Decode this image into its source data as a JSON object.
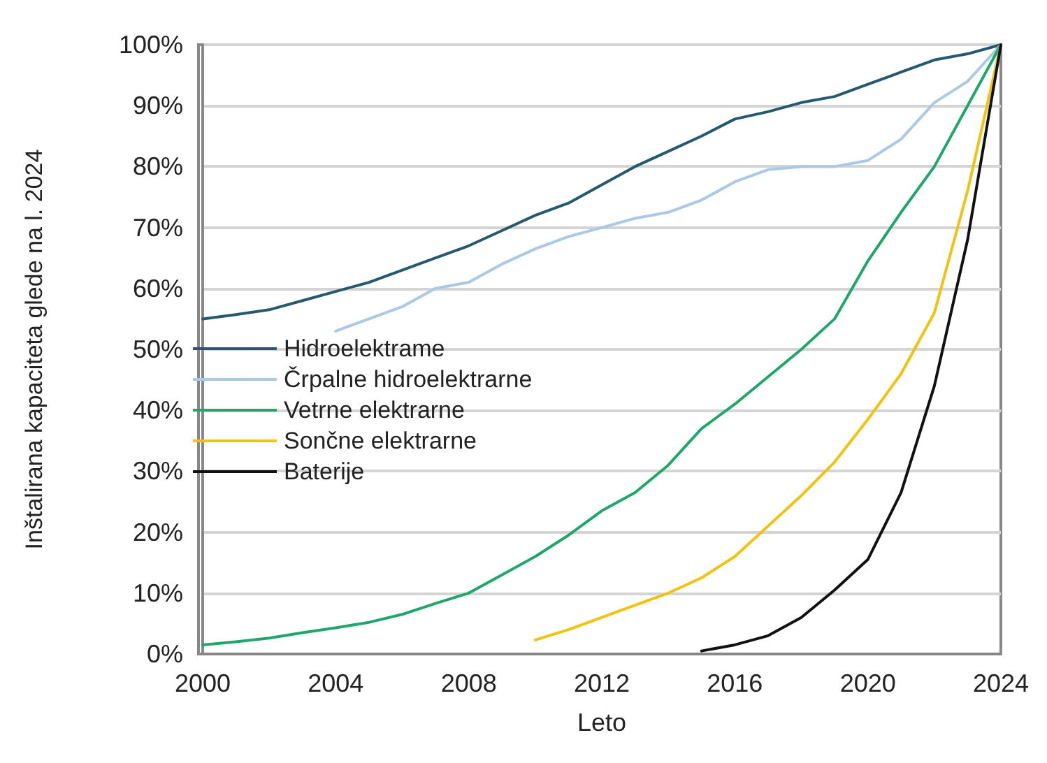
{
  "chart_data": {
    "type": "line",
    "xlabel": "Leto",
    "ylabel": "Inštalirana kapaciteta glede na l. 2024",
    "xlim": [
      2000,
      2024
    ],
    "xticks": [
      2000,
      2004,
      2008,
      2012,
      2016,
      2020,
      2024
    ],
    "ylim": [
      0,
      100
    ],
    "yticks": [
      {
        "value": 0,
        "label": "0%"
      },
      {
        "value": 10,
        "label": "10%"
      },
      {
        "value": 20,
        "label": "20%"
      },
      {
        "value": 30,
        "label": "30%"
      },
      {
        "value": 40,
        "label": "40%"
      },
      {
        "value": 50,
        "label": "50%"
      },
      {
        "value": 60,
        "label": "60%"
      },
      {
        "value": 70,
        "label": "70%"
      },
      {
        "value": 80,
        "label": "80%"
      },
      {
        "value": 90,
        "label": "90%"
      },
      {
        "value": 100,
        "label": "100%"
      }
    ],
    "grid": "y",
    "legend": "left",
    "marker": "none",
    "line_style": "solid",
    "series": [
      {
        "name": "Hidroelektrame",
        "color": "#24596e",
        "x": [
          2000,
          2001,
          2002,
          2003,
          2004,
          2005,
          2006,
          2007,
          2008,
          2009,
          2010,
          2011,
          2012,
          2013,
          2014,
          2015,
          2016,
          2017,
          2018,
          2019,
          2020,
          2021,
          2022,
          2023,
          2024
        ],
        "values": [
          55,
          55.7,
          56.5,
          58,
          59.5,
          61,
          63,
          65,
          67,
          69.5,
          72,
          74,
          77,
          80,
          82.5,
          85,
          87.8,
          89,
          90.5,
          91.5,
          93.5,
          95.5,
          97.5,
          98.5,
          100
        ]
      },
      {
        "name": "Črpalne hidroelektrarne",
        "color": "#a9c9e6",
        "x": [
          2004,
          2005,
          2006,
          2007,
          2008,
          2009,
          2010,
          2011,
          2012,
          2013,
          2014,
          2015,
          2016,
          2017,
          2018,
          2019,
          2020,
          2021,
          2022,
          2023,
          2024
        ],
        "values": [
          53,
          55,
          57,
          60,
          61,
          64,
          66.5,
          68.5,
          70,
          71.5,
          72.5,
          74.5,
          77.5,
          79.5,
          80,
          80,
          81,
          84.5,
          90.5,
          94,
          100
        ]
      },
      {
        "name": "Vetrne elektrarne",
        "color": "#1fa76b",
        "x": [
          2000,
          2001,
          2002,
          2003,
          2004,
          2005,
          2006,
          2007,
          2008,
          2009,
          2010,
          2011,
          2012,
          2013,
          2014,
          2015,
          2016,
          2017,
          2018,
          2019,
          2020,
          2021,
          2022,
          2023,
          2024
        ],
        "values": [
          1.5,
          2,
          2.6,
          3.5,
          4.3,
          5.2,
          6.5,
          8.3,
          10,
          13,
          16,
          19.5,
          23.5,
          26.5,
          31,
          37,
          41,
          45.5,
          50,
          55,
          64.5,
          72.5,
          80,
          90,
          100
        ]
      },
      {
        "name": "Sončne elektrarne",
        "color": "#f2c20f",
        "x": [
          2010,
          2011,
          2012,
          2013,
          2014,
          2015,
          2016,
          2017,
          2018,
          2019,
          2020,
          2021,
          2022,
          2023,
          2024
        ],
        "values": [
          2.3,
          4,
          6,
          8,
          10,
          12.5,
          16,
          21,
          26,
          31.5,
          38.5,
          46,
          56,
          76,
          100
        ]
      },
      {
        "name": "Baterije",
        "color": "#111111",
        "x": [
          2015,
          2016,
          2017,
          2018,
          2019,
          2020,
          2021,
          2022,
          2023,
          2024
        ],
        "values": [
          0.5,
          1.5,
          3,
          6,
          10.5,
          15.5,
          26.5,
          44,
          68,
          100
        ]
      }
    ]
  }
}
